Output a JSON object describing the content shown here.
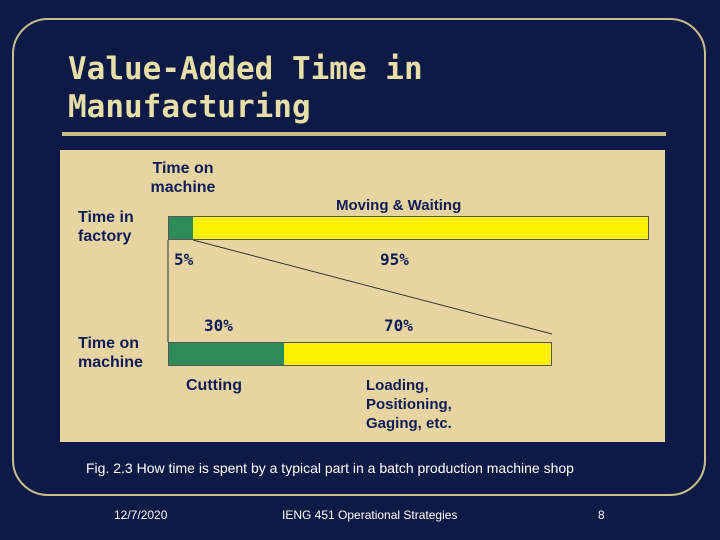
{
  "slide": {
    "title_line1": "Value-Added Time in",
    "title_line2": "Manufacturing",
    "caption": "Fig. 2.3 How time is spent by a typical part in a batch production machine shop",
    "footer": {
      "date": "12/7/2020",
      "course": "IENG 451 Operational Strategies",
      "page": "8"
    }
  },
  "chart_data": {
    "type": "bar",
    "orientation": "horizontal-stacked",
    "rows": [
      {
        "label_line1": "Time in",
        "label_line2": "factory",
        "segments": [
          {
            "name_line1": "Time on",
            "name_line2": "machine",
            "value": 5,
            "value_label": "5%",
            "color": "#2e8b57"
          },
          {
            "name_line1": "Moving & Waiting",
            "name_line2": "",
            "name_line3": "",
            "value": 95,
            "value_label": "95%",
            "color": "#fff200"
          }
        ]
      },
      {
        "label_line1": "Time on",
        "label_line2": "machine",
        "segments": [
          {
            "name_line1": "Cutting",
            "name_line2": "",
            "name_line3": "",
            "value": 30,
            "value_label": "30%",
            "color": "#2e8b57"
          },
          {
            "name_line1": "Loading,",
            "name_line2": "Positioning,",
            "name_line3": "Gaging, etc.",
            "value": 70,
            "value_label": "70%",
            "color": "#fff200"
          }
        ]
      }
    ],
    "colors": {
      "value_added": "#2e8b57",
      "non_value_added": "#fff200",
      "panel": "#e6d5a1",
      "background": "#0d1a45"
    }
  }
}
